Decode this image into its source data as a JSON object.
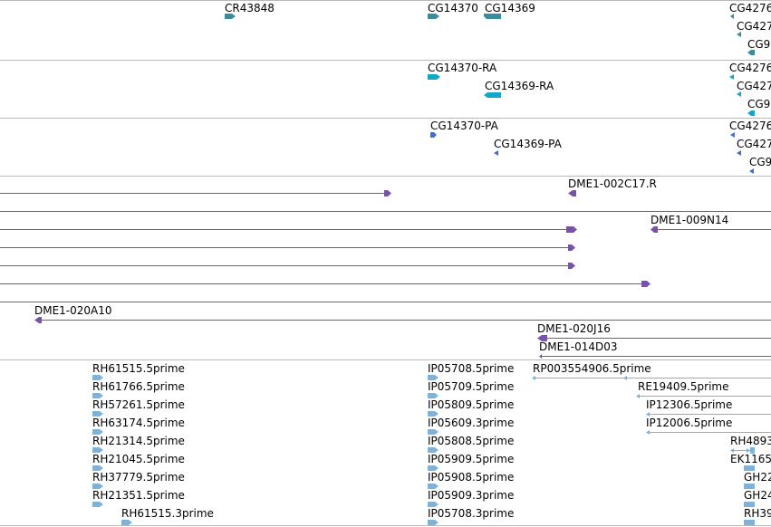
{
  "colors": {
    "gene": "#3a8c9a",
    "transcript": "#14a6c8",
    "protein": "#3f6fd0",
    "clone": "#7752a8",
    "est": "#7fb2d8",
    "divider": "#b9b9b9"
  },
  "tracks": {
    "genes": {
      "labels": [
        "CR43848",
        "CG14370",
        "CG14369",
        "CG4276",
        "CG427",
        "CG9"
      ]
    },
    "transcripts": {
      "labels": [
        "CG14370-RA",
        "CG14369-RA",
        "CG4276",
        "CG427",
        "CG9"
      ]
    },
    "proteins": {
      "labels": [
        "CG14370-PA",
        "CG14369-PA",
        "CG4276",
        "CG427",
        "CG9"
      ]
    },
    "clones": {
      "labels": [
        "DME1-002C17.R",
        "DME1-009N14",
        "DME1-020A10",
        "DME1-020J16",
        "DME1-014D03"
      ]
    },
    "ests": {
      "labels": [
        "RH61515.5prime",
        "RH61766.5prime",
        "RH57261.5prime",
        "RH63174.5prime",
        "RH21314.5prime",
        "RH21045.5prime",
        "RH37779.5prime",
        "RH21351.5prime",
        "RH61515.3prime",
        "IP05708.5prime",
        "IP05709.5prime",
        "IP05809.5prime",
        "IP05609.3prime",
        "IP05808.5prime",
        "IP05909.5prime",
        "IP05908.5prime",
        "IP05909.3prime",
        "IP05708.3prime",
        "RP003554906.5prime",
        "RE19409.5prime",
        "IP12306.5prime",
        "IP12006.5prime",
        "RH4893",
        "EK1165",
        "GH22",
        "GH24",
        "RH39"
      ]
    }
  }
}
